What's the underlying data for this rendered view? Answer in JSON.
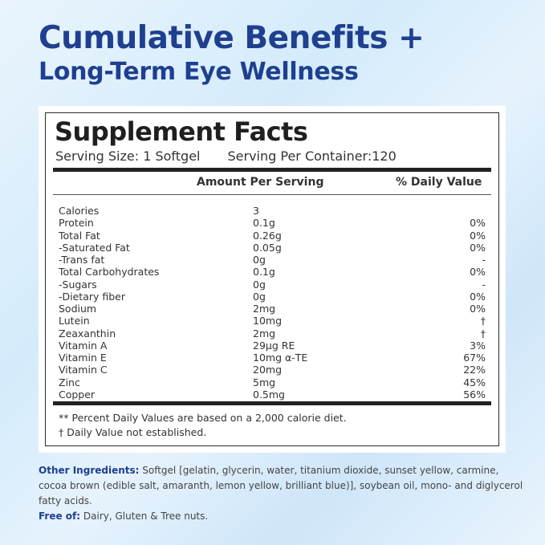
{
  "headline": {
    "line1": "Cumulative Benefits +",
    "line2": "Long-Term Eye Wellness"
  },
  "facts": {
    "title": "Supplement Facts",
    "serving_size": "Serving Size: 1 Softgel",
    "serving_per_container": "Serving Per Container:120",
    "col_amount": "Amount Per Serving",
    "col_dv": "% Daily Value",
    "rows": [
      {
        "name": "Calories",
        "amount": "3",
        "dv": ""
      },
      {
        "name": "Protein",
        "amount": "0.1g",
        "dv": "0%"
      },
      {
        "name": "Total Fat",
        "amount": "0.26g",
        "dv": "0%"
      },
      {
        "name": "-Saturated Fat",
        "amount": "0.05g",
        "dv": "0%"
      },
      {
        "name": "-Trans fat",
        "amount": "0g",
        "dv": "-"
      },
      {
        "name": "Total Carbohydrates",
        "amount": "0.1g",
        "dv": "0%"
      },
      {
        "name": "-Sugars",
        "amount": "0g",
        "dv": "-"
      },
      {
        "name": "-Dietary fiber",
        "amount": "0g",
        "dv": "0%"
      },
      {
        "name": "Sodium",
        "amount": "2mg",
        "dv": "0%"
      },
      {
        "name": "Lutein",
        "amount": "10mg",
        "dv": "†"
      },
      {
        "name": "Zeaxanthin",
        "amount": "2mg",
        "dv": "†"
      },
      {
        "name": "Vitamin A",
        "amount": "29µg RE",
        "dv": "3%"
      },
      {
        "name": "Vitamin E",
        "amount": "10mg α-TE",
        "dv": "67%"
      },
      {
        "name": "Vitamin C",
        "amount": "20mg",
        "dv": "22%"
      },
      {
        "name": "Zinc",
        "amount": "5mg",
        "dv": "45%"
      },
      {
        "name": "Copper",
        "amount": "0.5mg",
        "dv": "56%"
      }
    ],
    "footnote1": "** Percent Daily Values are based on a 2,000 calorie diet.",
    "footnote2": "† Daily Value not established."
  },
  "other": {
    "ingredients_label": "Other Ingredients:",
    "ingredients_text": " Softgel [gelatin, glycerin, water, titanium dioxide, sunset yellow, carmine, cocoa brown (edible salt, amaranth, lemon yellow, brilliant blue)], soybean oil, mono- and diglycerol fatty acids.",
    "free_label": "Free of:",
    "free_text": " Dairy, Gluten & Tree nuts."
  },
  "colors": {
    "headline": "#1f3f8f",
    "background": "#d4ebfb"
  }
}
